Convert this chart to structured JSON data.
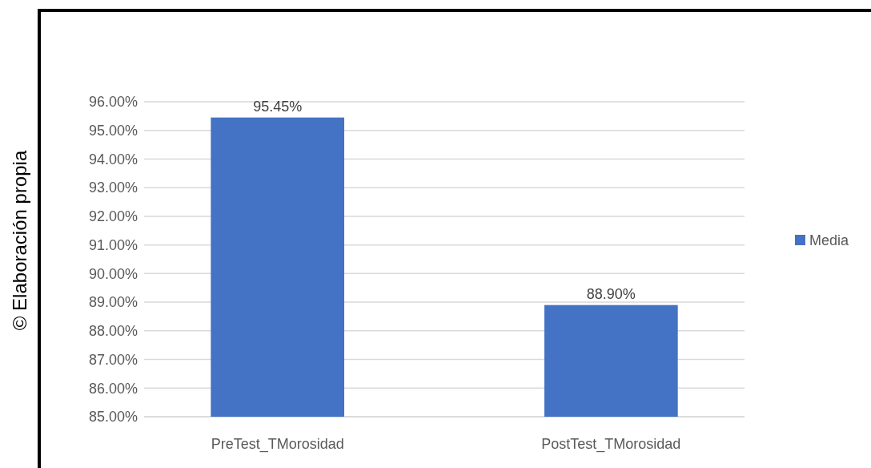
{
  "chart_data": {
    "type": "bar",
    "categories": [
      "PreTest_TMorosidad",
      "PostTest_TMorosidad"
    ],
    "series": [
      {
        "name": "Media",
        "color": "#4472c4",
        "values": [
          95.45,
          88.9
        ],
        "value_labels": [
          "95.45%",
          "88.90%"
        ]
      }
    ],
    "ylim": [
      85,
      96
    ],
    "yticks": [
      {
        "value": 85,
        "label": "85.00%"
      },
      {
        "value": 86,
        "label": "86.00%"
      },
      {
        "value": 87,
        "label": "87.00%"
      },
      {
        "value": 88,
        "label": "88.00%"
      },
      {
        "value": 89,
        "label": "89.00%"
      },
      {
        "value": 90,
        "label": "90.00%"
      },
      {
        "value": 91,
        "label": "91.00%"
      },
      {
        "value": 92,
        "label": "92.00%"
      },
      {
        "value": 93,
        "label": "93.00%"
      },
      {
        "value": 94,
        "label": "94.00%"
      },
      {
        "value": 95,
        "label": "95.00%"
      },
      {
        "value": 96,
        "label": "96.00%"
      }
    ],
    "grid": "y",
    "legend": "right",
    "annotations": [
      "© Elaboración propia"
    ]
  }
}
